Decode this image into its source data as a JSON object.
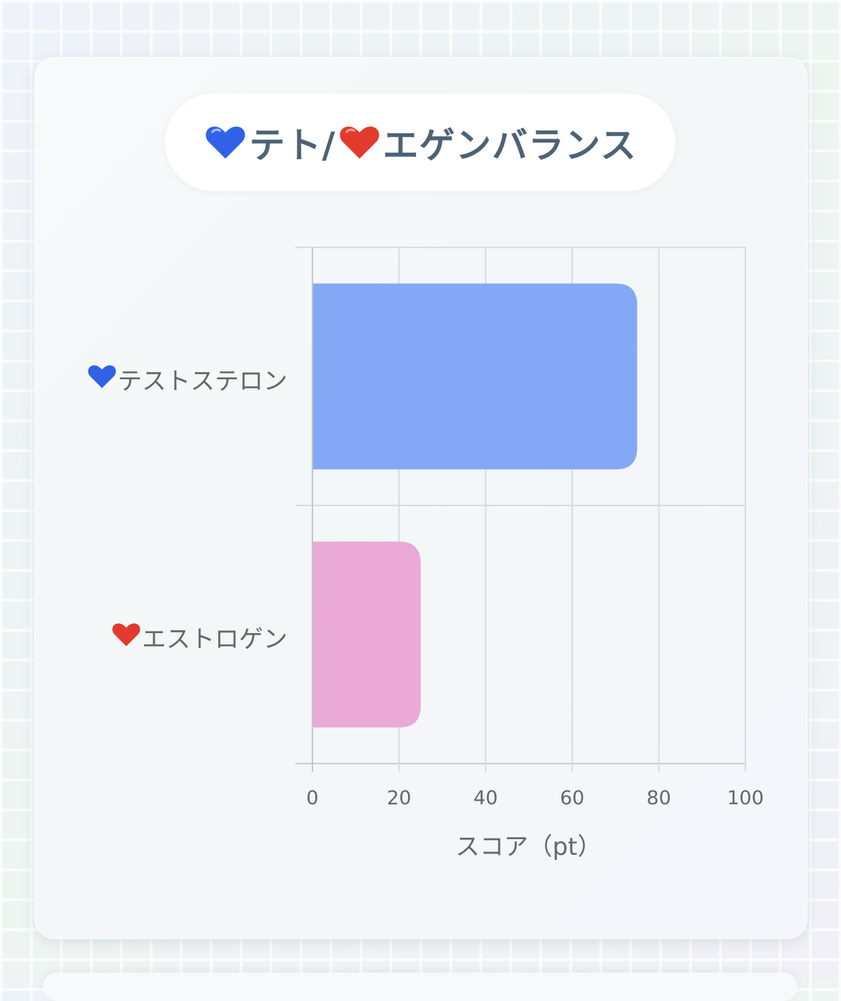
{
  "title": {
    "icon_left": "blue-heart",
    "text_left": "テト/",
    "icon_right": "red-heart",
    "text_right": "エゲンバランス"
  },
  "chart_data": {
    "type": "bar",
    "orientation": "horizontal",
    "categories": [
      {
        "icon": "blue-heart",
        "label": "テストステロン"
      },
      {
        "icon": "red-heart",
        "label": "エストロゲン"
      }
    ],
    "values": [
      75,
      25
    ],
    "colors": [
      "#84a8f6",
      "#eaa9d6"
    ],
    "xlabel": "スコア（pt）",
    "xlim": [
      0,
      100
    ],
    "xticks": [
      "0",
      "20",
      "40",
      "60",
      "80",
      "100"
    ],
    "grid": true
  }
}
